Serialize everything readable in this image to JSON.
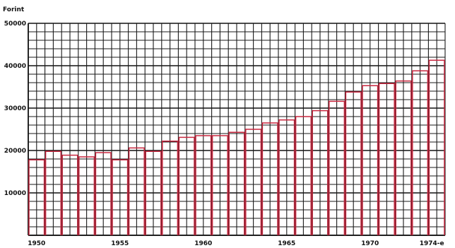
{
  "chart_data": {
    "type": "bar",
    "title": "",
    "ylabel": "Forint",
    "xlabel": "",
    "categories": [
      "1950",
      "1951",
      "1952",
      "1953",
      "1954",
      "1955",
      "1956",
      "1957",
      "1958",
      "1959",
      "1960",
      "1961",
      "1962",
      "1963",
      "1964",
      "1965",
      "1966",
      "1967",
      "1968",
      "1969",
      "1970",
      "1971",
      "1972",
      "1973",
      "1974"
    ],
    "values": [
      17800,
      19800,
      18900,
      18500,
      19500,
      17800,
      20600,
      19800,
      22200,
      23100,
      23500,
      23500,
      24300,
      25000,
      26500,
      27200,
      28000,
      29400,
      31600,
      33800,
      35300,
      35800,
      36400,
      38800,
      41300
    ],
    "ylim": [
      0,
      50000
    ],
    "y_ticks": [
      10000,
      20000,
      30000,
      40000,
      50000
    ],
    "y_tick_labels": [
      "10000",
      "20000",
      "30000",
      "40000",
      "50000"
    ],
    "x_tick_labels": [
      {
        "year": 1950,
        "label": "1950"
      },
      {
        "year": 1955,
        "label": "1955"
      },
      {
        "year": 1960,
        "label": "1960"
      },
      {
        "year": 1965,
        "label": "1965"
      },
      {
        "year": 1970,
        "label": "1970"
      },
      {
        "year": 1974,
        "label": "1974-e"
      }
    ],
    "grid": true,
    "colors": {
      "bar": "#c8273f",
      "grid": "#1a1a1a"
    }
  }
}
